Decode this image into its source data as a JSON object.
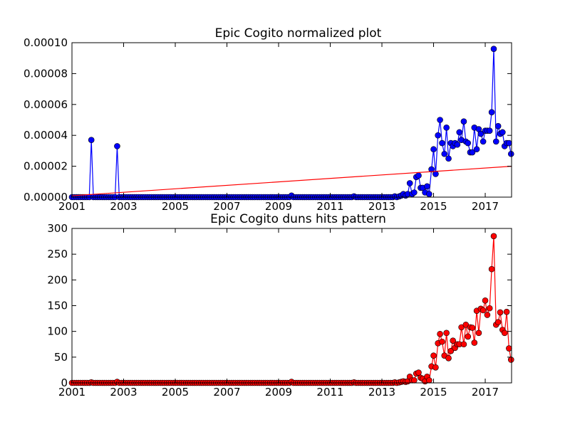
{
  "chart_data": [
    {
      "type": "line",
      "title": "Epic Cogito normalized plot",
      "xlim": [
        2001,
        2018.02
      ],
      "xticks": [
        2001,
        2003,
        2005,
        2007,
        2009,
        2011,
        2013,
        2015,
        2017
      ],
      "ylim": [
        0,
        0.0001
      ],
      "yticks": [
        {
          "value": 0,
          "label": "0.00000"
        },
        {
          "value": 2e-05,
          "label": "0.00002"
        },
        {
          "value": 4e-05,
          "label": "0.00004"
        },
        {
          "value": 6e-05,
          "label": "0.00006"
        },
        {
          "value": 8e-05,
          "label": "0.00008"
        },
        {
          "value": 0.0001,
          "label": "0.00010"
        }
      ],
      "grid": false,
      "series": [
        {
          "color": "#0000ff",
          "marker": "o",
          "x": [
            2001,
            2001.08,
            2001.17,
            2001.25,
            2001.33,
            2001.42,
            2001.5,
            2001.58,
            2001.67,
            2001.75,
            2001.83,
            2001.92,
            2002,
            2002.08,
            2002.17,
            2002.25,
            2002.33,
            2002.42,
            2002.5,
            2002.58,
            2002.67,
            2002.75,
            2002.83,
            2002.92,
            2003,
            2003.08,
            2003.17,
            2003.25,
            2003.33,
            2003.42,
            2003.5,
            2003.58,
            2003.67,
            2003.75,
            2003.83,
            2003.92,
            2004,
            2004.08,
            2004.17,
            2004.25,
            2004.33,
            2004.42,
            2004.5,
            2004.58,
            2004.67,
            2004.75,
            2004.83,
            2004.92,
            2005,
            2005.08,
            2005.17,
            2005.25,
            2005.33,
            2005.42,
            2005.5,
            2005.58,
            2005.67,
            2005.75,
            2005.83,
            2005.92,
            2006,
            2006.08,
            2006.17,
            2006.25,
            2006.33,
            2006.42,
            2006.5,
            2006.58,
            2006.67,
            2006.75,
            2006.83,
            2006.92,
            2007,
            2007.08,
            2007.17,
            2007.25,
            2007.33,
            2007.42,
            2007.5,
            2007.58,
            2007.67,
            2007.75,
            2007.83,
            2007.92,
            2008,
            2008.08,
            2008.17,
            2008.25,
            2008.33,
            2008.42,
            2008.5,
            2008.58,
            2008.67,
            2008.75,
            2008.83,
            2008.92,
            2009,
            2009.08,
            2009.17,
            2009.25,
            2009.33,
            2009.42,
            2009.5,
            2009.58,
            2009.67,
            2009.75,
            2009.83,
            2009.92,
            2010,
            2010.08,
            2010.17,
            2010.25,
            2010.33,
            2010.42,
            2010.5,
            2010.58,
            2010.67,
            2010.75,
            2010.83,
            2010.92,
            2011,
            2011.08,
            2011.17,
            2011.25,
            2011.33,
            2011.42,
            2011.5,
            2011.58,
            2011.67,
            2011.75,
            2011.83,
            2011.92,
            2012,
            2012.08,
            2012.17,
            2012.25,
            2012.33,
            2012.42,
            2012.5,
            2012.58,
            2012.67,
            2012.75,
            2012.83,
            2012.92,
            2013,
            2013.08,
            2013.17,
            2013.25,
            2013.33,
            2013.42,
            2013.5,
            2013.58,
            2013.67,
            2013.75,
            2013.83,
            2013.92,
            2014,
            2014.08,
            2014.17,
            2014.25,
            2014.33,
            2014.42,
            2014.5,
            2014.58,
            2014.67,
            2014.75,
            2014.83,
            2014.92,
            2015,
            2015.08,
            2015.17,
            2015.25,
            2015.33,
            2015.42,
            2015.5,
            2015.58,
            2015.67,
            2015.75,
            2015.83,
            2015.92,
            2016,
            2016.08,
            2016.17,
            2016.25,
            2016.33,
            2016.42,
            2016.5,
            2016.58,
            2016.67,
            2016.75,
            2016.83,
            2016.92,
            2017,
            2017.08,
            2017.17,
            2017.25,
            2017.33,
            2017.42,
            2017.5,
            2017.58,
            2017.67,
            2017.75,
            2017.83,
            2017.92,
            2018
          ],
          "values": [
            0,
            0,
            0,
            0,
            0,
            0,
            0,
            0,
            0,
            3.7e-05,
            0,
            0,
            0,
            0,
            0,
            0,
            0,
            0,
            0,
            0,
            0,
            3.3e-05,
            0,
            0,
            0,
            0,
            0,
            0,
            0,
            0,
            0,
            0,
            0,
            0,
            0,
            0,
            0,
            0,
            0,
            0,
            0,
            0,
            0,
            0,
            0,
            0,
            0,
            0,
            0,
            0,
            0,
            0,
            0,
            0,
            0,
            0,
            0,
            0,
            0,
            0,
            0,
            0,
            0,
            0,
            0,
            0,
            0,
            0,
            0,
            0,
            0,
            0,
            0,
            0,
            0,
            0,
            0,
            0,
            0,
            0,
            0,
            0,
            0,
            0,
            0,
            0,
            0,
            0,
            0,
            0,
            0,
            0,
            0,
            0,
            0,
            0,
            0,
            0,
            0,
            0,
            0,
            0,
            1e-06,
            0,
            0,
            0,
            0,
            0,
            0,
            0,
            0,
            0,
            0,
            0,
            0,
            0,
            0,
            0,
            0,
            0,
            0,
            0,
            0,
            0,
            0,
            0,
            0,
            0,
            0,
            0,
            0,
            5e-07,
            0,
            0,
            0,
            0,
            0,
            0,
            0,
            0,
            0,
            0,
            0,
            0,
            0,
            0,
            0,
            0,
            0,
            0,
            5e-07,
            0,
            5e-07,
            1e-06,
            2e-06,
            1e-06,
            2e-06,
            9e-06,
            2e-06,
            3e-06,
            1.3e-05,
            1.4e-05,
            6e-06,
            6e-06,
            3e-06,
            7e-06,
            2e-06,
            1.8e-05,
            3.1e-05,
            1.5e-05,
            4e-05,
            5e-05,
            3.5e-05,
            2.8e-05,
            4.5e-05,
            2.5e-05,
            3.5e-05,
            3.3e-05,
            3.5e-05,
            3.4e-05,
            4.2e-05,
            3.7e-05,
            4.9e-05,
            3.6e-05,
            3.5e-05,
            2.9e-05,
            2.9e-05,
            4.5e-05,
            3.1e-05,
            4.4e-05,
            4.1e-05,
            3.6e-05,
            4.3e-05,
            4.3e-05,
            4.3e-05,
            5.5e-05,
            9.6e-05,
            3.6e-05,
            4.6e-05,
            4.1e-05,
            4.2e-05,
            3.3e-05,
            3.5e-05,
            3.5e-05,
            2.8e-05
          ]
        },
        {
          "color": "#ff0000",
          "marker": "none",
          "x": [
            2001,
            2018.02
          ],
          "values": [
            9e-07,
            2e-05
          ]
        }
      ]
    },
    {
      "type": "line",
      "title": "Epic Cogito duns hits pattern",
      "xlim": [
        2001,
        2018.02
      ],
      "xticks": [
        2001,
        2003,
        2005,
        2007,
        2009,
        2011,
        2013,
        2015,
        2017
      ],
      "ylim": [
        0,
        300
      ],
      "yticks": [
        0,
        50,
        100,
        150,
        200,
        250,
        300
      ],
      "grid": false,
      "series": [
        {
          "color": "#ff0000",
          "marker": "o",
          "x": [
            2001,
            2001.08,
            2001.17,
            2001.25,
            2001.33,
            2001.42,
            2001.5,
            2001.58,
            2001.67,
            2001.75,
            2001.83,
            2001.92,
            2002,
            2002.08,
            2002.17,
            2002.25,
            2002.33,
            2002.42,
            2002.5,
            2002.58,
            2002.67,
            2002.75,
            2002.83,
            2002.92,
            2003,
            2003.08,
            2003.17,
            2003.25,
            2003.33,
            2003.42,
            2003.5,
            2003.58,
            2003.67,
            2003.75,
            2003.83,
            2003.92,
            2004,
            2004.08,
            2004.17,
            2004.25,
            2004.33,
            2004.42,
            2004.5,
            2004.58,
            2004.67,
            2004.75,
            2004.83,
            2004.92,
            2005,
            2005.08,
            2005.17,
            2005.25,
            2005.33,
            2005.42,
            2005.5,
            2005.58,
            2005.67,
            2005.75,
            2005.83,
            2005.92,
            2006,
            2006.08,
            2006.17,
            2006.25,
            2006.33,
            2006.42,
            2006.5,
            2006.58,
            2006.67,
            2006.75,
            2006.83,
            2006.92,
            2007,
            2007.08,
            2007.17,
            2007.25,
            2007.33,
            2007.42,
            2007.5,
            2007.58,
            2007.67,
            2007.75,
            2007.83,
            2007.92,
            2008,
            2008.08,
            2008.17,
            2008.25,
            2008.33,
            2008.42,
            2008.5,
            2008.58,
            2008.67,
            2008.75,
            2008.83,
            2008.92,
            2009,
            2009.08,
            2009.17,
            2009.25,
            2009.33,
            2009.42,
            2009.5,
            2009.58,
            2009.67,
            2009.75,
            2009.83,
            2009.92,
            2010,
            2010.08,
            2010.17,
            2010.25,
            2010.33,
            2010.42,
            2010.5,
            2010.58,
            2010.67,
            2010.75,
            2010.83,
            2010.92,
            2011,
            2011.08,
            2011.17,
            2011.25,
            2011.33,
            2011.42,
            2011.5,
            2011.58,
            2011.67,
            2011.75,
            2011.83,
            2011.92,
            2012,
            2012.08,
            2012.17,
            2012.25,
            2012.33,
            2012.42,
            2012.5,
            2012.58,
            2012.67,
            2012.75,
            2012.83,
            2012.92,
            2013,
            2013.08,
            2013.17,
            2013.25,
            2013.33,
            2013.42,
            2013.5,
            2013.58,
            2013.67,
            2013.75,
            2013.83,
            2013.92,
            2014,
            2014.08,
            2014.17,
            2014.25,
            2014.33,
            2014.42,
            2014.5,
            2014.58,
            2014.67,
            2014.75,
            2014.83,
            2014.92,
            2015,
            2015.08,
            2015.17,
            2015.25,
            2015.33,
            2015.42,
            2015.5,
            2015.58,
            2015.67,
            2015.75,
            2015.83,
            2015.92,
            2016,
            2016.08,
            2016.17,
            2016.25,
            2016.33,
            2016.42,
            2016.5,
            2016.58,
            2016.67,
            2016.75,
            2016.83,
            2016.92,
            2017,
            2017.08,
            2017.17,
            2017.25,
            2017.33,
            2017.42,
            2017.5,
            2017.58,
            2017.67,
            2017.75,
            2017.83,
            2017.92,
            2018
          ],
          "values": [
            0,
            0,
            0,
            0,
            0,
            0,
            0,
            0,
            0,
            1,
            0,
            0,
            0,
            0,
            0,
            0,
            0,
            0,
            0,
            0,
            0,
            2,
            0,
            0,
            0,
            0,
            0,
            0,
            0,
            0,
            0,
            0,
            0,
            0,
            0,
            0,
            0,
            0,
            0,
            0,
            0,
            0,
            0,
            0,
            0,
            0,
            0,
            0,
            0,
            0,
            0,
            0,
            0,
            0,
            0,
            0,
            0,
            0,
            0,
            0,
            0,
            0,
            0,
            0,
            0,
            0,
            0,
            0,
            0,
            0,
            0,
            0,
            0,
            0,
            0,
            0,
            0,
            0,
            0,
            0,
            0,
            0,
            0,
            0,
            0,
            0,
            0,
            0,
            0,
            0,
            0,
            0,
            0,
            0,
            0,
            0,
            0,
            0,
            0,
            0,
            0,
            0,
            2,
            0,
            0,
            0,
            0,
            0,
            0,
            0,
            0,
            0,
            0,
            0,
            0,
            0,
            0,
            0,
            0,
            0,
            0,
            0,
            0,
            0,
            0,
            0,
            0,
            0,
            0,
            0,
            0,
            1,
            0,
            0,
            0,
            0,
            0,
            0,
            0,
            0,
            0,
            0,
            0,
            0,
            0,
            0,
            0,
            0,
            0,
            0,
            1,
            0,
            1,
            2,
            3,
            2,
            3,
            12,
            5,
            5,
            18,
            20,
            10,
            8,
            3,
            12,
            5,
            32,
            53,
            30,
            77,
            95,
            80,
            53,
            97,
            48,
            62,
            82,
            68,
            75,
            75,
            108,
            75,
            113,
            90,
            108,
            107,
            78,
            140,
            97,
            144,
            141,
            160,
            132,
            145,
            221,
            285,
            113,
            118,
            137,
            103,
            97,
            138,
            67,
            45
          ]
        }
      ]
    }
  ]
}
